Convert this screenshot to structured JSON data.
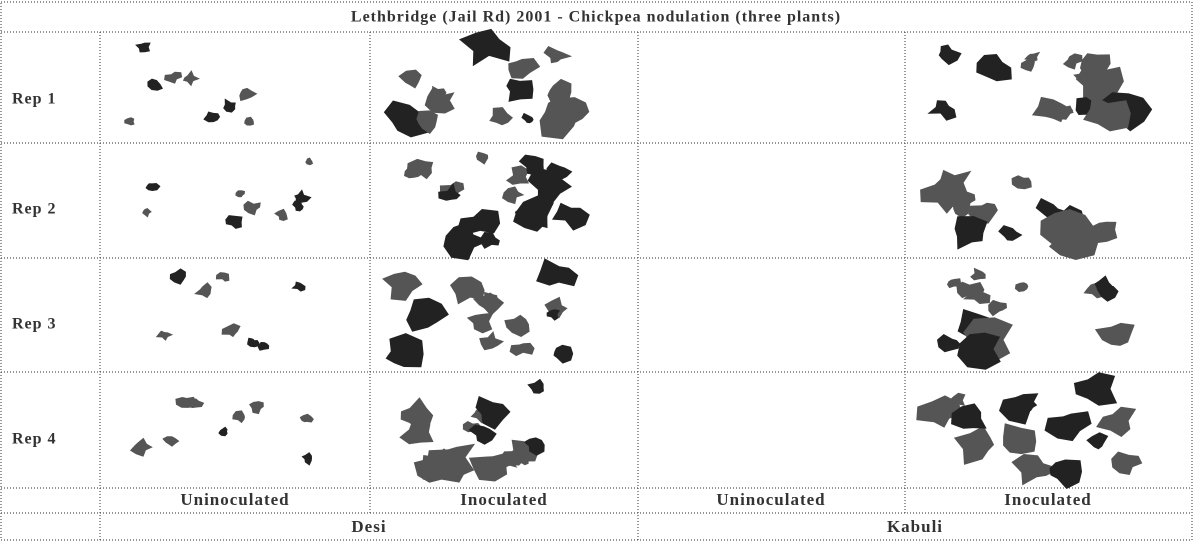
{
  "header": {
    "title": "Lethbridge (Jail Rd) 2001 - Chickpea nodulation (three plants)"
  },
  "table": {
    "rows": [
      "Rep 1",
      "Rep 2",
      "Rep 3",
      "Rep 4"
    ],
    "treatments": [
      "Uninoculated",
      "Inoculated",
      "Uninoculated",
      "Inoculated"
    ],
    "varieties": [
      "Desi",
      "Kabuli"
    ]
  }
}
